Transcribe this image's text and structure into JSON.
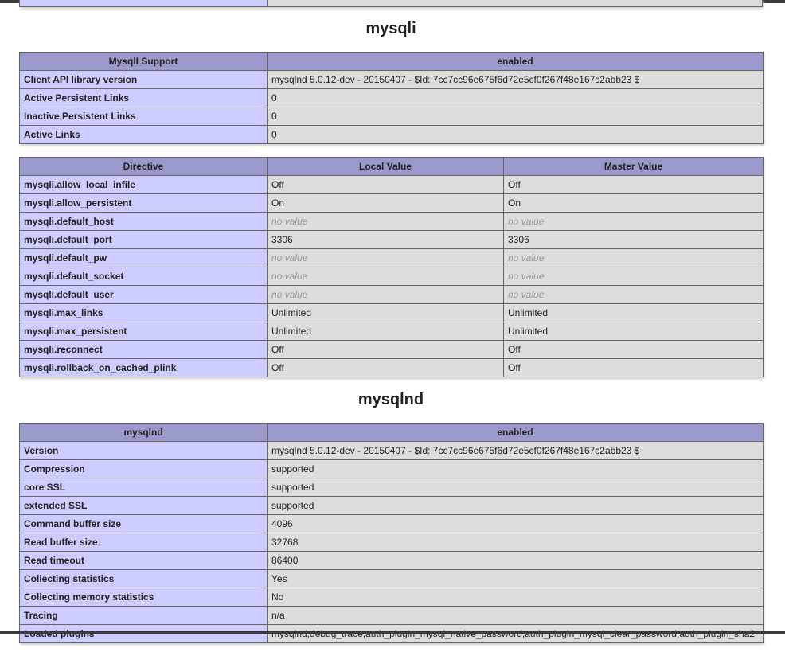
{
  "sections": [
    {
      "title": "mysqli",
      "tables": [
        {
          "header": [
            "MysqlI Support",
            "enabled"
          ],
          "rows": [
            [
              "Client API library version",
              "mysqlnd 5.0.12-dev - 20150407 - $Id: 7cc7cc96e675f6d72e5cf0f267f48e167c2abb23 $"
            ],
            [
              "Active Persistent Links",
              "0"
            ],
            [
              "Inactive Persistent Links",
              "0"
            ],
            [
              "Active Links",
              "0"
            ]
          ]
        },
        {
          "header": [
            "Directive",
            "Local Value",
            "Master Value"
          ],
          "rows": [
            [
              "mysqli.allow_local_infile",
              "Off",
              "Off"
            ],
            [
              "mysqli.allow_persistent",
              "On",
              "On"
            ],
            [
              "mysqli.default_host",
              {
                "text": "no value",
                "muted": true
              },
              {
                "text": "no value",
                "muted": true
              }
            ],
            [
              "mysqli.default_port",
              "3306",
              "3306"
            ],
            [
              "mysqli.default_pw",
              {
                "text": "no value",
                "muted": true
              },
              {
                "text": "no value",
                "muted": true
              }
            ],
            [
              "mysqli.default_socket",
              {
                "text": "no value",
                "muted": true
              },
              {
                "text": "no value",
                "muted": true
              }
            ],
            [
              "mysqli.default_user",
              {
                "text": "no value",
                "muted": true
              },
              {
                "text": "no value",
                "muted": true
              }
            ],
            [
              "mysqli.max_links",
              "Unlimited",
              "Unlimited"
            ],
            [
              "mysqli.max_persistent",
              "Unlimited",
              "Unlimited"
            ],
            [
              "mysqli.reconnect",
              "Off",
              "Off"
            ],
            [
              "mysqli.rollback_on_cached_plink",
              "Off",
              "Off"
            ]
          ]
        }
      ]
    },
    {
      "title": "mysqlnd",
      "tables": [
        {
          "header": [
            "mysqlnd",
            "enabled"
          ],
          "rows": [
            [
              "Version",
              "mysqlnd 5.0.12-dev - 20150407 - $Id: 7cc7cc96e675f6d72e5cf0f267f48e167c2abb23 $"
            ],
            [
              "Compression",
              "supported"
            ],
            [
              "core SSL",
              "supported"
            ],
            [
              "extended SSL",
              "supported"
            ],
            [
              "Command buffer size",
              "4096"
            ],
            [
              "Read buffer size",
              "32768"
            ],
            [
              "Read timeout",
              "86400"
            ],
            [
              "Collecting statistics",
              "Yes"
            ],
            [
              "Collecting memory statistics",
              "No"
            ],
            [
              "Tracing",
              "n/a"
            ],
            [
              "Loaded plugins",
              "mysqlnd,debug_trace,auth_plugin_mysql_native_password,auth_plugin_mysql_clear_password,auth_plugin_sha2"
            ]
          ]
        }
      ]
    }
  ]
}
